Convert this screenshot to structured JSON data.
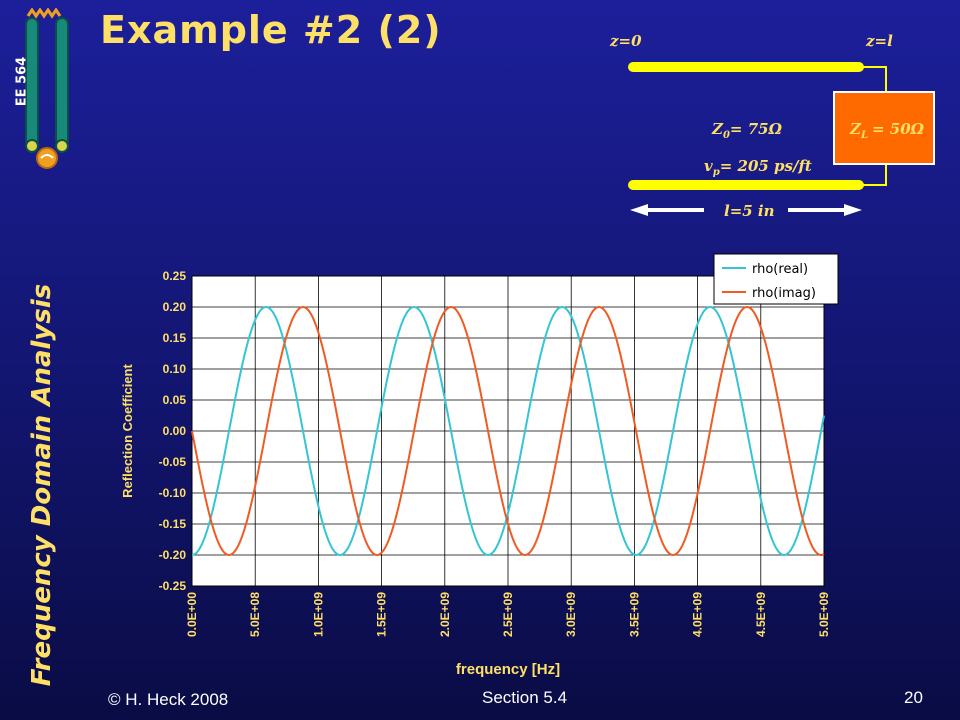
{
  "slide": {
    "title": "Example #2 (2)",
    "course_code": "EE 564",
    "sidebar_title": "Frequency Domain Analysis",
    "copyright": "© H. Heck 2008",
    "section": "Section 5.4",
    "page_number": "20"
  },
  "colors": {
    "background": "#1a1d8f",
    "title": "#ffe066",
    "plot_bg": "#ffffff",
    "rho_real": "#33c5d6",
    "rho_imag": "#f05a23",
    "line_yellow": "#ffff00",
    "load_fill": "#ff6a00"
  },
  "diagram": {
    "z0_label": "z=0",
    "zl_label": "z=l",
    "impedance_label": "Z",
    "impedance_sub": "0",
    "impedance_value": "= 75Ω",
    "load_label": "Z",
    "load_sub": "L",
    "load_value": "= 50Ω",
    "velocity_label": "v",
    "velocity_sub": "p",
    "velocity_value": "= 205 ps/ft",
    "length_label": "l=5 in"
  },
  "chart_data": {
    "type": "line",
    "xlabel": "frequency [Hz]",
    "ylabel": "Reflection Coefficient",
    "xlim": [
      0,
      5000000000
    ],
    "ylim": [
      -0.25,
      0.25
    ],
    "x_ticks": [
      "0.0E+00",
      "5.0E+08",
      "1.0E+09",
      "1.5E+09",
      "2.0E+09",
      "2.5E+09",
      "3.0E+09",
      "3.5E+09",
      "4.0E+09",
      "4.5E+09",
      "5.0E+09"
    ],
    "y_ticks": [
      "0.25",
      "0.20",
      "0.15",
      "0.10",
      "0.05",
      "0.00",
      "-0.05",
      "-0.10",
      "-0.15",
      "-0.20",
      "-0.25"
    ],
    "grid": true,
    "legend_position": "top-right",
    "period_hz": 1171000000,
    "amplitude": 0.2,
    "series": [
      {
        "name": "rho(real)",
        "x": [
          0,
          146375000,
          292750000,
          439125000,
          585500000,
          731875000,
          878250000,
          1024625000,
          1171000000,
          1317375000,
          1463750000,
          1610125000,
          1756500000,
          1902875000,
          2049250000,
          2195625000,
          2342000000,
          2488375000,
          2634750000,
          2781125000,
          2927500000,
          3073875000,
          3220250000,
          3366625000,
          3513000000,
          3659375000,
          3805750000,
          3952125000,
          4098500000,
          4244875000,
          4391250000,
          4537625000,
          4684000000,
          4830375000,
          5000000000
        ],
        "y": [
          -0.2,
          -0.141,
          0.0,
          0.141,
          0.2,
          0.141,
          0.0,
          -0.141,
          -0.2,
          -0.141,
          0.0,
          0.141,
          0.2,
          0.141,
          0.0,
          -0.141,
          -0.2,
          -0.141,
          0.0,
          0.141,
          0.2,
          0.141,
          0.0,
          -0.141,
          -0.2,
          -0.141,
          0.0,
          0.141,
          0.2,
          0.141,
          0.0,
          -0.141,
          -0.2,
          -0.141,
          0.0
        ]
      },
      {
        "name": "rho(imag)",
        "x": [
          0,
          146375000,
          292750000,
          439125000,
          585500000,
          731875000,
          878250000,
          1024625000,
          1171000000,
          1317375000,
          1463750000,
          1610125000,
          1756500000,
          1902875000,
          2049250000,
          2195625000,
          2342000000,
          2488375000,
          2634750000,
          2781125000,
          2927500000,
          3073875000,
          3220250000,
          3366625000,
          3513000000,
          3659375000,
          3805750000,
          3952125000,
          4098500000,
          4244875000,
          4391250000,
          4537625000,
          4684000000,
          4830375000,
          5000000000
        ],
        "y": [
          0.0,
          -0.141,
          -0.2,
          -0.141,
          0.0,
          0.141,
          0.2,
          0.141,
          0.0,
          -0.141,
          -0.2,
          -0.141,
          0.0,
          0.141,
          0.2,
          0.141,
          0.0,
          -0.141,
          -0.2,
          -0.141,
          0.0,
          0.141,
          0.2,
          0.141,
          0.0,
          -0.141,
          -0.2,
          -0.141,
          0.0,
          0.141,
          0.2,
          0.141,
          0.0,
          -0.141,
          -0.2
        ]
      }
    ]
  }
}
